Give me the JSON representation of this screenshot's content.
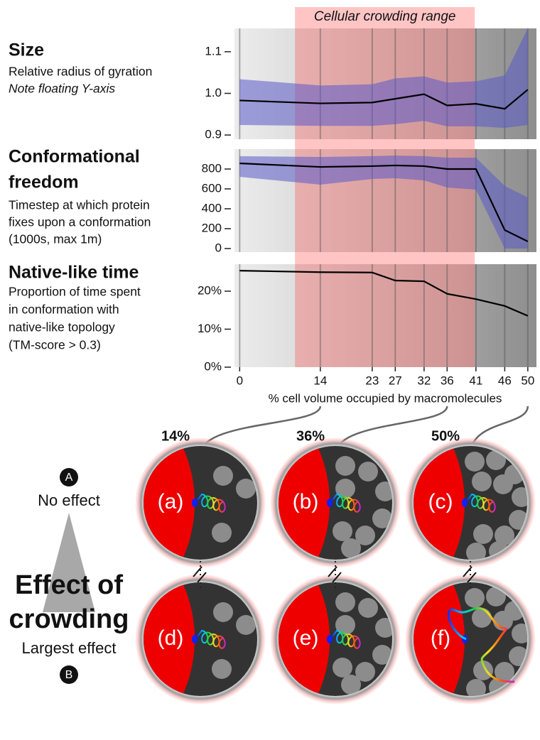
{
  "chart_data": [
    {
      "type": "line",
      "title_lines": [
        "Size"
      ],
      "description_lines": [
        "Relative radius of gyration",
        "Note floating Y-axis"
      ],
      "highlight": {
        "label": "Cellular crowding range",
        "range": [
          9.6,
          40.8
        ]
      },
      "x": [
        0,
        14,
        23,
        27,
        32,
        36,
        41,
        46,
        50
      ],
      "xlim": [
        -0.9,
        51.5
      ],
      "values": [
        0.983,
        0.976,
        0.978,
        0.987,
        0.998,
        0.971,
        0.975,
        0.963,
        1.009
      ],
      "band_upper": [
        1.034,
        1.019,
        1.022,
        1.036,
        1.041,
        1.026,
        1.029,
        1.043,
        1.156
      ],
      "band_lower": [
        0.924,
        0.922,
        0.922,
        0.926,
        0.934,
        0.921,
        0.921,
        0.917,
        0.924
      ],
      "color": "#000000",
      "band_color": "#5a5ac8",
      "ylim": [
        0.89,
        1.156
      ],
      "yticks": [
        0.9,
        {
          "value": 1,
          "label": "1.0"
        },
        1.1
      ]
    },
    {
      "type": "line",
      "title_lines": [
        "Conformational",
        "freedom"
      ],
      "description_lines": [
        "Timestep at which protein",
        "fixes upon a conformation",
        "(1000s, max 1m)"
      ],
      "x": [
        0,
        14,
        23,
        27,
        32,
        36,
        41,
        46,
        50
      ],
      "xlim": [
        -0.9,
        51.5
      ],
      "values": [
        857,
        821,
        829,
        836,
        829,
        800,
        800,
        186,
        71
      ],
      "band_upper": [
        929,
        921,
        929,
        936,
        929,
        914,
        914,
        629,
        514
      ],
      "band_lower": [
        721,
        643,
        700,
        707,
        686,
        614,
        593,
        0,
        0
      ],
      "color": "#000000",
      "band_color": "#5a5ac8",
      "ylim": [
        -36,
        1000
      ],
      "yticks": [
        0,
        200,
        400,
        600,
        800
      ]
    },
    {
      "type": "line",
      "title_lines": [
        "Native-like time"
      ],
      "description_lines": [
        "Proportion of time spent",
        "in conformation with",
        "native-like topology",
        "(TM-score > 0.3)"
      ],
      "x": [
        0,
        14,
        23,
        27,
        32,
        36,
        41,
        46,
        50
      ],
      "xlim": [
        -0.9,
        51.5
      ],
      "values": [
        25.4,
        25.0,
        24.9,
        22.8,
        22.6,
        19.3,
        17.9,
        16.1,
        13.5
      ],
      "color": "#000000",
      "ylim": [
        0,
        27.1
      ],
      "yticks": [
        {
          "value": 0,
          "label": "0%"
        },
        {
          "value": 10,
          "label": "10%"
        },
        {
          "value": 20,
          "label": "20%"
        }
      ],
      "xticks": [
        0,
        14,
        23,
        27,
        32,
        36,
        41,
        46,
        50
      ],
      "xlabel": "% cell volume occupied by macromolecules"
    }
  ],
  "diagram": {
    "levels": [
      {
        "label": "14%",
        "value": 14
      },
      {
        "label": "36%",
        "value": 36
      },
      {
        "label": "50%",
        "value": 50
      }
    ],
    "rows": [
      {
        "cells": [
          "(a)",
          "(b)",
          "(c)"
        ]
      },
      {
        "cells": [
          "(d)",
          "(e)",
          "(f)"
        ]
      }
    ],
    "scale": {
      "top_marker": "A",
      "top_label": "No effect",
      "title_lines": [
        "Effect of",
        "crowding"
      ],
      "bottom_label": "Largest effect",
      "bottom_marker": "B"
    }
  }
}
